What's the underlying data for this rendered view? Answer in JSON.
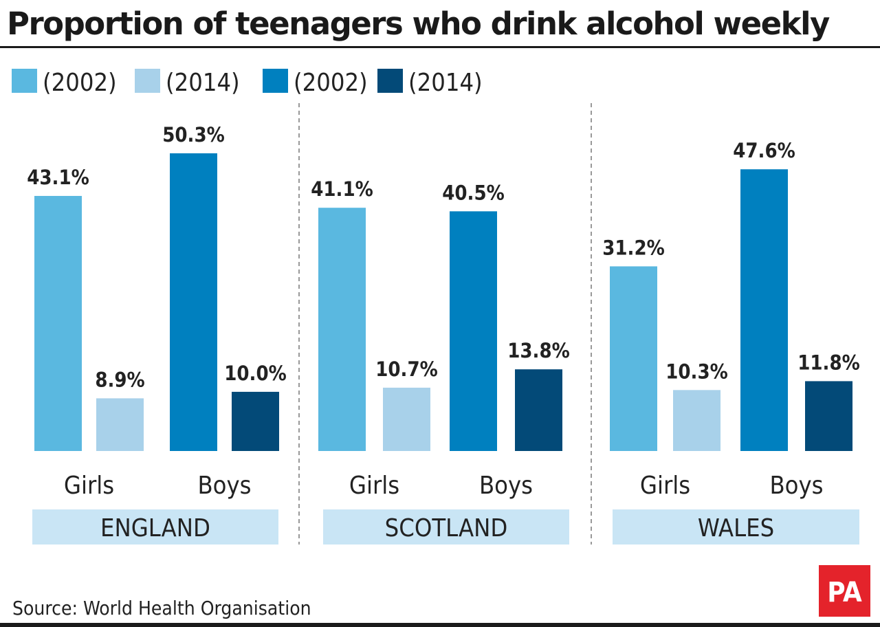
{
  "chart_data": {
    "type": "bar",
    "title": "Proportion of teenagers who drink alcohol weekly",
    "legend": [
      "(2002)",
      "(2014)",
      "(2002)",
      "(2014)"
    ],
    "legend_placement": "top-left",
    "colors": [
      "#5ab8e0",
      "#a8d1ea",
      "#0080bf",
      "#034a78"
    ],
    "groups": [
      {
        "name": "ENGLAND",
        "subgroups": [
          {
            "label": "Girls",
            "values": [
              43.1,
              8.9
            ]
          },
          {
            "label": "Boys",
            "values": [
              50.3,
              10.0
            ]
          }
        ]
      },
      {
        "name": "SCOTLAND",
        "subgroups": [
          {
            "label": "Girls",
            "values": [
              41.1,
              10.7
            ]
          },
          {
            "label": "Boys",
            "values": [
              40.5,
              13.8
            ]
          }
        ]
      },
      {
        "name": "WALES",
        "subgroups": [
          {
            "label": "Girls",
            "values": [
              31.2,
              10.3
            ]
          },
          {
            "label": "Boys",
            "values": [
              47.6,
              11.8
            ]
          }
        ]
      }
    ],
    "value_suffix": "%",
    "grid": false,
    "source": "Source: World Health Organisation",
    "logo": "PA"
  }
}
